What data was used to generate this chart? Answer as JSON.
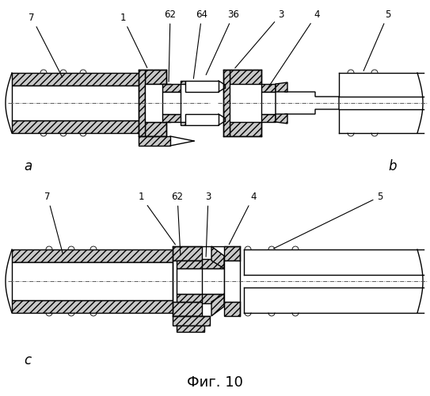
{
  "background_color": "#ffffff",
  "fig_label": "Фиг. 10",
  "fig_label_fontsize": 13,
  "label_a": "a",
  "label_b": "b",
  "label_c": "c",
  "gray_light": "#c8c8c8",
  "gray_med": "#a0a0a0",
  "white": "#ffffff",
  "black": "#000000",
  "lw": 1.0,
  "lw_thin": 0.6
}
